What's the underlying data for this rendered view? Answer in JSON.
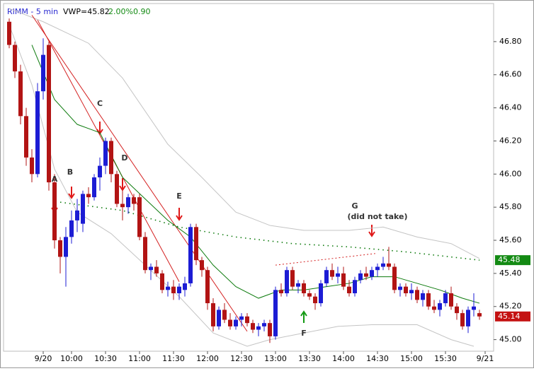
{
  "chart_data": {
    "type": "candlestick",
    "title": "RIMM - 5 min",
    "indicator": {
      "label": "VWP=45.82",
      "pct": "2.00%",
      "ratio": "0.90"
    },
    "up_color": "#1c1cd4",
    "down_color": "#b21414",
    "xlim": [
      -1,
      85.5
    ],
    "xticks": [
      {
        "value": 6,
        "label": "9/20"
      },
      {
        "value": 11,
        "label": "10:00"
      },
      {
        "value": 17,
        "label": "10:30"
      },
      {
        "value": 23,
        "label": "11:00"
      },
      {
        "value": 29,
        "label": "11:30"
      },
      {
        "value": 35,
        "label": "12:00"
      },
      {
        "value": 41,
        "label": "12:30"
      },
      {
        "value": 47,
        "label": "13:00"
      },
      {
        "value": 53,
        "label": "13:30"
      },
      {
        "value": 59,
        "label": "14:00"
      },
      {
        "value": 65,
        "label": "14:30"
      },
      {
        "value": 71,
        "label": "15:00"
      },
      {
        "value": 77,
        "label": "15:30"
      },
      {
        "value": 84,
        "label": "9/21"
      }
    ],
    "ylim": [
      44.93,
      47.03
    ],
    "yticks": [
      {
        "value": 45,
        "label": "45.00"
      },
      {
        "value": 45.2,
        "label": "45.20"
      },
      {
        "value": 45.4,
        "label": "45.40"
      },
      {
        "value": 45.6,
        "label": "45.60"
      },
      {
        "value": 45.8,
        "label": "45.80"
      },
      {
        "value": 46,
        "label": "46.00"
      },
      {
        "value": 46.2,
        "label": "46.20"
      },
      {
        "value": 46.4,
        "label": "46.40"
      },
      {
        "value": 46.6,
        "label": "46.60"
      },
      {
        "value": 46.8,
        "label": "46.80"
      }
    ],
    "open": [
      46.92,
      46.78,
      46.62,
      46.35,
      46.1,
      46.0,
      46.5,
      46.78,
      45.95,
      45.6,
      45.5,
      45.62,
      45.72,
      45.7,
      45.88,
      45.86,
      45.98,
      46.05,
      46.2,
      46.0,
      45.82,
      45.8,
      45.86,
      45.86,
      45.62,
      45.42,
      45.44,
      45.4,
      45.3,
      45.32,
      45.28,
      45.3,
      45.34,
      45.68,
      45.48,
      45.42,
      45.22,
      45.08,
      45.18,
      45.12,
      45.08,
      45.12,
      45.14,
      45.1,
      45.06,
      45.08,
      45.1,
      45.02,
      45.3,
      45.28,
      45.42,
      45.32,
      45.34,
      45.28,
      45.26,
      45.22,
      45.34,
      45.42,
      45.38,
      45.4,
      45.32,
      45.28,
      45.36,
      45.4,
      45.38,
      45.42,
      45.44,
      45.46,
      45.44,
      45.3,
      45.32,
      45.28,
      45.3,
      45.24,
      45.28,
      45.2,
      45.18,
      45.22,
      45.28,
      45.2,
      45.16,
      45.08,
      45.18,
      45.16
    ],
    "high": [
      46.94,
      46.8,
      46.66,
      46.4,
      46.15,
      46.55,
      46.82,
      46.8,
      46.0,
      45.62,
      45.68,
      45.78,
      45.85,
      45.9,
      45.92,
      46.0,
      46.1,
      46.22,
      46.22,
      46.02,
      45.9,
      45.88,
      45.88,
      45.88,
      45.65,
      45.46,
      45.48,
      45.42,
      45.35,
      45.36,
      45.34,
      45.38,
      45.7,
      45.7,
      45.5,
      45.44,
      45.25,
      45.2,
      45.22,
      45.16,
      45.14,
      45.16,
      45.16,
      45.12,
      45.1,
      45.12,
      45.12,
      45.32,
      45.34,
      45.44,
      45.44,
      45.36,
      45.36,
      45.3,
      45.28,
      45.36,
      45.44,
      45.46,
      45.44,
      45.44,
      45.36,
      45.38,
      45.42,
      45.44,
      45.44,
      45.46,
      45.5,
      45.56,
      45.46,
      45.34,
      45.34,
      45.34,
      45.32,
      45.3,
      45.3,
      45.24,
      45.24,
      45.3,
      45.32,
      45.22,
      45.18,
      45.2,
      45.28,
      45.18
    ],
    "low": [
      46.76,
      46.58,
      46.3,
      46.05,
      45.95,
      45.98,
      46.45,
      45.9,
      45.55,
      45.4,
      45.32,
      45.58,
      45.65,
      45.65,
      45.82,
      45.84,
      45.9,
      46.0,
      45.95,
      45.8,
      45.72,
      45.76,
      45.78,
      45.6,
      45.4,
      45.36,
      45.38,
      45.28,
      45.26,
      45.24,
      45.24,
      45.26,
      45.32,
      45.45,
      45.38,
      45.18,
      45.05,
      45.06,
      45.1,
      45.06,
      45.06,
      45.08,
      45.08,
      45.04,
      45.02,
      45.05,
      44.98,
      45.0,
      45.26,
      45.26,
      45.3,
      45.28,
      45.26,
      45.24,
      45.18,
      45.2,
      45.32,
      45.36,
      45.34,
      45.3,
      45.26,
      45.26,
      45.34,
      45.36,
      45.36,
      45.38,
      45.42,
      45.42,
      45.28,
      45.26,
      45.26,
      45.24,
      45.22,
      45.2,
      45.18,
      45.16,
      45.14,
      45.2,
      45.18,
      45.12,
      45.06,
      45.04,
      45.14,
      45.12
    ],
    "close": [
      46.78,
      46.62,
      46.35,
      46.1,
      46.0,
      46.5,
      46.72,
      45.95,
      45.6,
      45.5,
      45.62,
      45.72,
      45.78,
      45.88,
      45.86,
      45.98,
      46.05,
      46.2,
      46.0,
      45.82,
      45.8,
      45.86,
      45.82,
      45.62,
      45.42,
      45.44,
      45.4,
      45.3,
      45.32,
      45.28,
      45.32,
      45.34,
      45.68,
      45.48,
      45.42,
      45.22,
      45.08,
      45.18,
      45.12,
      45.08,
      45.12,
      45.14,
      45.1,
      45.06,
      45.08,
      45.1,
      45.02,
      45.3,
      45.28,
      45.42,
      45.32,
      45.34,
      45.28,
      45.26,
      45.22,
      45.34,
      45.42,
      45.38,
      45.4,
      45.32,
      45.28,
      45.36,
      45.4,
      45.38,
      45.42,
      45.44,
      45.46,
      45.44,
      45.3,
      45.32,
      45.28,
      45.3,
      45.24,
      45.28,
      45.2,
      45.18,
      45.22,
      45.28,
      45.2,
      45.16,
      45.08,
      45.18,
      45.2,
      45.14
    ],
    "ma": {
      "color": "#0c7a0c",
      "x": [
        4,
        8,
        12,
        16,
        20,
        24,
        28,
        32,
        36,
        40,
        44,
        48,
        52,
        56,
        60,
        64,
        68,
        72,
        76,
        80,
        83
      ],
      "values": [
        46.78,
        46.45,
        46.3,
        46.25,
        45.98,
        45.85,
        45.72,
        45.62,
        45.45,
        45.32,
        45.25,
        45.3,
        45.3,
        45.32,
        45.34,
        45.38,
        45.38,
        45.34,
        45.3,
        45.25,
        45.22
      ]
    },
    "vwap": {
      "color": "#0c7a0c",
      "x": [
        9,
        20,
        30,
        40,
        50,
        60,
        70,
        83
      ],
      "values": [
        45.83,
        45.78,
        45.68,
        45.62,
        45.58,
        45.56,
        45.53,
        45.48
      ]
    },
    "bands": {
      "color": "#c4c4c4",
      "upper": {
        "x": [
          0,
          6,
          14,
          20,
          28,
          34,
          40,
          46,
          52,
          60,
          66,
          72,
          78,
          83
        ],
        "values": [
          47.0,
          46.92,
          46.79,
          46.58,
          46.18,
          45.98,
          45.77,
          45.69,
          45.66,
          45.66,
          45.68,
          45.62,
          45.58,
          45.49
        ]
      },
      "lower": {
        "x": [
          0,
          4,
          8,
          12,
          18,
          24,
          30,
          36,
          42,
          46,
          52,
          58,
          64,
          72,
          78,
          82
        ],
        "values": [
          46.9,
          46.54,
          46.03,
          45.77,
          45.64,
          45.45,
          45.26,
          45.04,
          44.96,
          45.0,
          45.04,
          45.08,
          45.09,
          45.09,
          45.0,
          44.96
        ]
      }
    },
    "trendlines": [
      {
        "color": "#d42020",
        "x": [
          4,
          42
        ],
        "values": [
          46.96,
          45.05
        ]
      },
      {
        "color": "#d42020",
        "x": [
          5,
          30
        ],
        "values": [
          46.93,
          45.35
        ]
      },
      {
        "color": "#d42020",
        "dashed": true,
        "x": [
          47,
          64.6
        ],
        "values": [
          45.45,
          45.52
        ]
      }
    ],
    "price_labels": [
      {
        "value": 45.48,
        "label": "45.48",
        "color": "#138a13"
      },
      {
        "value": 45.14,
        "label": "45.14",
        "color": "#c41212"
      }
    ],
    "annotations": [
      "A",
      "B",
      "C",
      "D",
      "E",
      "F",
      "G",
      "(did not take)"
    ]
  }
}
